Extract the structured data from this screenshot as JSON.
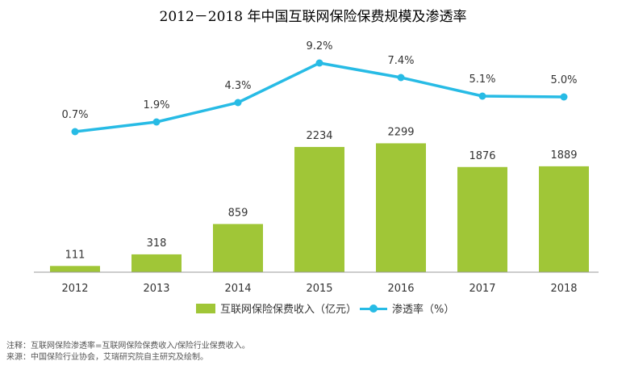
{
  "title": "2012－2018 年中国互联网保险保费规模及渗透率",
  "colors": {
    "bar": "#a0c637",
    "line": "#27bbe5",
    "axis": "#999999"
  },
  "chart_data": {
    "type": "bar+line",
    "categories": [
      "2012",
      "2013",
      "2014",
      "2015",
      "2016",
      "2017",
      "2018"
    ],
    "series": [
      {
        "name": "互联网保险保费收入（亿元）",
        "type": "bar",
        "values": [
          111,
          318,
          859,
          2234,
          2299,
          1876,
          1889
        ],
        "labels": [
          "111",
          "318",
          "859",
          "2234",
          "2299",
          "1876",
          "1889"
        ]
      },
      {
        "name": "渗透率（%）",
        "type": "line",
        "values": [
          0.7,
          1.9,
          4.3,
          9.2,
          7.4,
          5.1,
          5.0
        ],
        "labels": [
          "0.7%",
          "1.9%",
          "4.3%",
          "9.2%",
          "7.4%",
          "5.1%",
          "5.0%"
        ]
      }
    ],
    "bar_ylim": [
      0,
      2550
    ],
    "line_ylim": [
      0,
      10
    ],
    "legend_position": "bottom"
  },
  "notes": [
    "注释：互联网保险渗透率=互联网保险保费收入/保险行业保费收入。",
    "来源：中国保险行业协会，艾瑞研究院自主研究及绘制。"
  ]
}
